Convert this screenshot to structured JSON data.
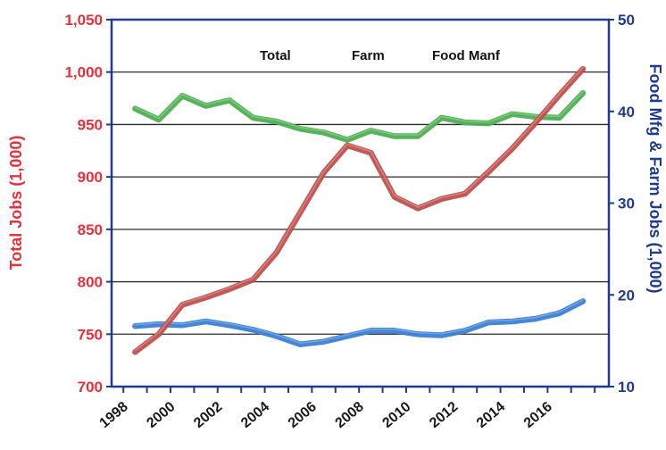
{
  "chart_data": {
    "type": "line",
    "title": "",
    "y_left_label": "Total  Jobs (1,000)",
    "y_right_label": "Food Mfg & Farm Jobs (1,000)",
    "x_ticks": [
      "1998",
      "2000",
      "2002",
      "2004",
      "2006",
      "2008",
      "2010",
      "2012",
      "2014",
      "2016"
    ],
    "y_left_ticks": [
      "700",
      "750",
      "800",
      "850",
      "900",
      "950",
      "1,000",
      "1,050"
    ],
    "y_right_ticks": [
      "10",
      "20",
      "30",
      "40",
      "50"
    ],
    "ylim_left": [
      700,
      1050
    ],
    "ylim_right": [
      10,
      50
    ],
    "xlim": [
      1997.5,
      2018.6
    ],
    "grid": "horizontal",
    "legend_position": "top",
    "series": [
      {
        "name": "Total",
        "axis": "left",
        "color": "#c0504d",
        "x": [
          1998.5,
          1999.5,
          2000.5,
          2001.5,
          2002.5,
          2003.5,
          2004.5,
          2005.5,
          2006.5,
          2007.5,
          2008.5,
          2009.5,
          2010.5,
          2011.5,
          2012.5,
          2013.5,
          2014.5,
          2015.5,
          2016.5,
          2017.5
        ],
        "values": [
          733,
          750,
          778,
          785,
          793,
          802,
          828,
          866,
          904,
          930,
          923,
          881,
          870,
          879,
          884,
          905,
          927,
          952,
          978,
          1003
        ]
      },
      {
        "name": "Farm",
        "axis": "right",
        "color": "#4caf50",
        "x": [
          1998.5,
          1999.5,
          2000.5,
          2001.5,
          2002.5,
          2003.5,
          2004.5,
          2005.5,
          2006.5,
          2007.5,
          2008.5,
          2009.5,
          2010.5,
          2011.5,
          2012.5,
          2013.5,
          2014.5,
          2015.5,
          2016.5,
          2017.5
        ],
        "values": [
          40.3,
          39.1,
          41.7,
          40.6,
          41.2,
          39.3,
          38.9,
          38.1,
          37.7,
          36.9,
          37.9,
          37.3,
          37.3,
          39.3,
          38.8,
          38.7,
          39.7,
          39.4,
          39.3,
          42.0
        ]
      },
      {
        "name": "Food Manf",
        "axis": "right",
        "color": "#3a7fd5",
        "x": [
          1998.5,
          1999.5,
          2000.5,
          2001.5,
          2002.5,
          2003.5,
          2004.5,
          2005.5,
          2006.5,
          2007.5,
          2008.5,
          2009.5,
          2010.5,
          2011.5,
          2012.5,
          2013.5,
          2014.5,
          2015.5,
          2016.5,
          2017.5
        ],
        "values": [
          16.6,
          16.8,
          16.7,
          17.1,
          16.7,
          16.2,
          15.5,
          14.6,
          14.9,
          15.5,
          16.1,
          16.1,
          15.7,
          15.6,
          16.1,
          17.0,
          17.1,
          17.4,
          18.0,
          19.3
        ]
      }
    ]
  }
}
